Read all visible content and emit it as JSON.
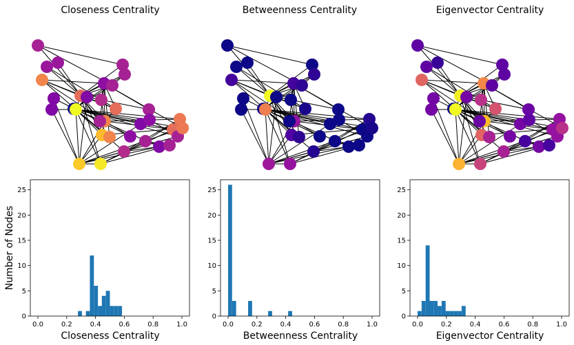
{
  "chart_data": [
    {
      "type": "network",
      "title": "Closeness Centrality",
      "colormap": "plasma",
      "node_values": [
        0.45,
        0.36,
        0.47,
        0.45,
        0.38,
        0.38,
        0.38,
        0.39,
        0.51,
        0.36,
        0.38,
        0.37,
        0.37,
        0.47,
        0.35,
        0.35,
        0.28,
        0.38,
        0.35,
        0.47,
        0.35,
        0.38,
        0.35,
        0.39,
        0.38,
        0.38,
        0.36,
        0.46,
        0.45,
        0.38,
        0.46,
        0.54,
        0.52,
        0.55
      ]
    },
    {
      "type": "network",
      "title": "Betweenness Centrality",
      "colormap": "plasma",
      "node_values": [
        0.44,
        0.05,
        0.14,
        0.01,
        0.0,
        0.03,
        0.03,
        0.0,
        0.06,
        0.0,
        0.0,
        0.0,
        0.0,
        0.05,
        0.0,
        0.0,
        0.0,
        0.0,
        0.0,
        0.03,
        0.0,
        0.0,
        0.0,
        0.02,
        0.0,
        0.0,
        0.0,
        0.02,
        0.0,
        0.0,
        0.01,
        0.14,
        0.15,
        0.3
      ]
    },
    {
      "type": "network",
      "title": "Eigenvector Centrality",
      "colormap": "plasma",
      "node_values": [
        0.36,
        0.27,
        0.32,
        0.21,
        0.08,
        0.08,
        0.08,
        0.17,
        0.23,
        0.1,
        0.08,
        0.05,
        0.08,
        0.23,
        0.1,
        0.1,
        0.02,
        0.09,
        0.1,
        0.15,
        0.1,
        0.09,
        0.1,
        0.15,
        0.06,
        0.06,
        0.08,
        0.13,
        0.13,
        0.13,
        0.17,
        0.19,
        0.31,
        0.37
      ]
    },
    {
      "type": "histogram",
      "xlabel": "Closeness Centrality",
      "ylabel": "Number of Nodes",
      "xlim": [
        0,
        1
      ],
      "ylim": [
        0,
        27
      ],
      "bin_width": 0.0278,
      "bins": [
        {
          "x": 0.278,
          "count": 1
        },
        {
          "x": 0.333,
          "count": 1
        },
        {
          "x": 0.361,
          "count": 12
        },
        {
          "x": 0.389,
          "count": 6
        },
        {
          "x": 0.417,
          "count": 2
        },
        {
          "x": 0.444,
          "count": 4
        },
        {
          "x": 0.472,
          "count": 5
        },
        {
          "x": 0.5,
          "count": 2
        },
        {
          "x": 0.528,
          "count": 2
        },
        {
          "x": 0.556,
          "count": 2
        }
      ]
    },
    {
      "type": "histogram",
      "xlabel": "Betweenness Centrality",
      "ylabel": "",
      "xlim": [
        0,
        1
      ],
      "ylim": [
        0,
        27
      ],
      "bin_width": 0.0278,
      "bins": [
        {
          "x": 0.0,
          "count": 26
        },
        {
          "x": 0.028,
          "count": 3
        },
        {
          "x": 0.139,
          "count": 3
        },
        {
          "x": 0.278,
          "count": 1
        },
        {
          "x": 0.417,
          "count": 1
        }
      ]
    },
    {
      "type": "histogram",
      "xlabel": "Eigenvector Centrality",
      "ylabel": "",
      "xlim": [
        0,
        1
      ],
      "ylim": [
        0,
        27
      ],
      "bin_width": 0.0278,
      "bins": [
        {
          "x": 0.0,
          "count": 1
        },
        {
          "x": 0.028,
          "count": 3
        },
        {
          "x": 0.056,
          "count": 14
        },
        {
          "x": 0.083,
          "count": 3
        },
        {
          "x": 0.111,
          "count": 3
        },
        {
          "x": 0.139,
          "count": 2
        },
        {
          "x": 0.167,
          "count": 3
        },
        {
          "x": 0.194,
          "count": 1
        },
        {
          "x": 0.222,
          "count": 1
        },
        {
          "x": 0.25,
          "count": 1
        },
        {
          "x": 0.278,
          "count": 1
        },
        {
          "x": 0.306,
          "count": 2
        }
      ]
    }
  ],
  "axis": {
    "xticks": [
      "0.0",
      "0.2",
      "0.4",
      "0.6",
      "0.8",
      "1.0"
    ],
    "xtick_values": [
      0,
      0.2,
      0.4,
      0.6,
      0.8,
      1.0
    ],
    "yticks": [
      "0",
      "5",
      "10",
      "15",
      "20",
      "25"
    ],
    "ytick_values": [
      0,
      5,
      10,
      15,
      20,
      25
    ]
  },
  "colors": {
    "bar": "#1f77b4",
    "edge": "#000000"
  }
}
